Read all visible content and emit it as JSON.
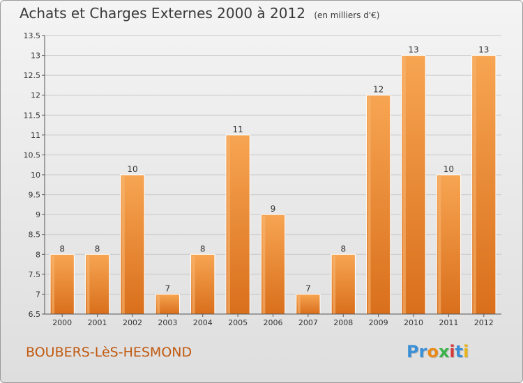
{
  "title": "Achats et Charges Externes 2000 à 2012",
  "subtitle": "(en milliers d'€)",
  "commune": "BOUBERS-LèS-HESMOND",
  "logo": {
    "letters": [
      "P",
      "r",
      "o",
      "x",
      "i",
      "t",
      "i"
    ],
    "colors": [
      "#3b8fd6",
      "#3b8fd6",
      "#e88a1a",
      "#3bb24a",
      "#d43b3b",
      "#3b8fd6",
      "#e8b41a"
    ]
  },
  "chart_data": {
    "type": "bar",
    "categories": [
      "2000",
      "2001",
      "2002",
      "2003",
      "2004",
      "2005",
      "2006",
      "2007",
      "2008",
      "2009",
      "2010",
      "2011",
      "2012"
    ],
    "values": [
      8,
      8,
      10,
      7,
      8,
      11,
      9,
      7,
      8,
      12,
      13,
      10,
      13
    ],
    "ylim": [
      6.5,
      13.5
    ],
    "yticks": [
      "6.5",
      "7",
      "7.5",
      "8",
      "8.5",
      "9",
      "9.5",
      "10",
      "10.5",
      "11",
      "11.5",
      "12",
      "12.5",
      "13",
      "13.5"
    ],
    "grid": true,
    "bar_color": "#e8852e"
  }
}
